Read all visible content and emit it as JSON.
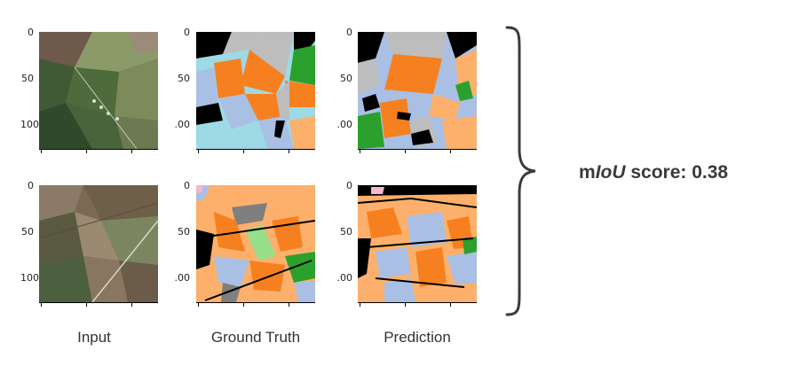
{
  "colors": {
    "orange": "#f6801f",
    "light_orange": "#fdb06b",
    "light_blue": "#a9c0e4",
    "gray": "#bdbdbd",
    "black": "#000000",
    "green": "#2ca02c",
    "light_green": "#98df8a",
    "cyan": "#9edae5",
    "pink": "#f7b6d2"
  },
  "columns": [
    {
      "label": "Input"
    },
    {
      "label": "Ground Truth"
    },
    {
      "label": "Prediction"
    }
  ],
  "rows": [
    {
      "y_ticks": [
        "0",
        "50",
        "100"
      ],
      "y_ticks_cropped": [
        "0",
        "50",
        ".00"
      ]
    },
    {
      "y_ticks": [
        "0",
        "50",
        "100"
      ],
      "y_ticks_cropped": [
        "0",
        "50",
        ".00"
      ]
    }
  ],
  "score": {
    "prefix": "m",
    "metric": "IoU",
    "suffix": " score:",
    "value": "0.38"
  },
  "brace_icon": "right-curly-brace-icon"
}
